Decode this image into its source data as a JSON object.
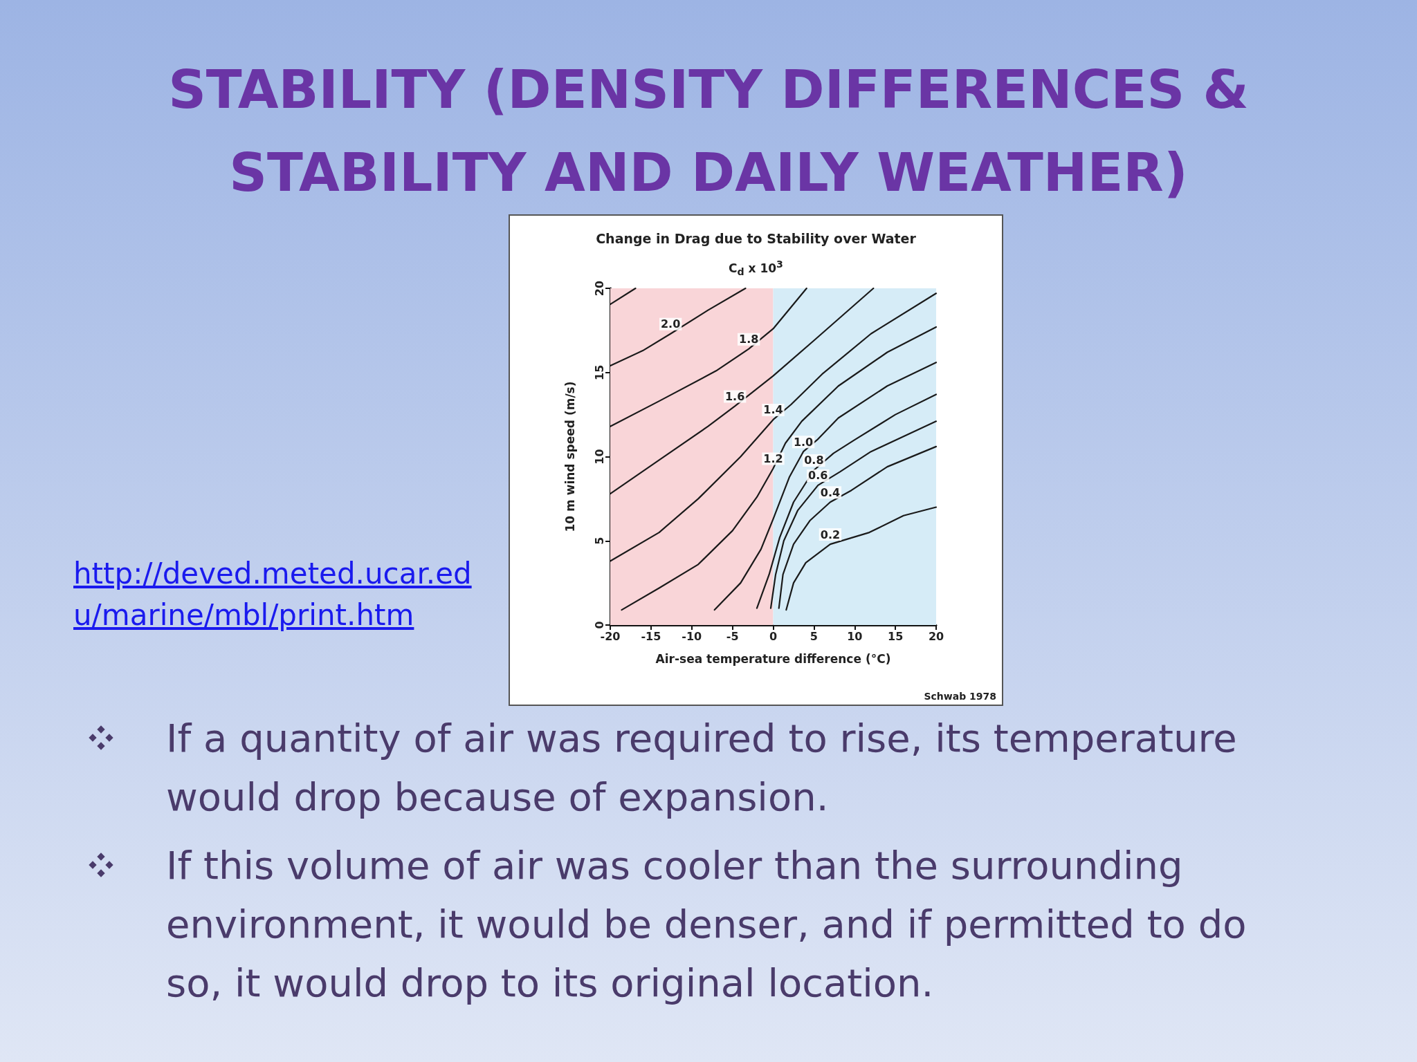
{
  "chart_data": {
    "type": "line",
    "title": "STABILITY (DENSITY DIFFERENCES & STABILITY AND DAILY WEATHER)",
    "subtitle": "Change in Drag due to Stability over Water",
    "xlabel": "Air-sea temperature difference (°C)",
    "ylabel": "10 m wind speed (m/s)",
    "annotations": [
      "C$_{d}$ x 10$^{3}$",
      "Schwab 1978",
      "http://deved.meted.ucar.edu/marine/mbl/print.htm",
      "If a quantity of air was required to rise, its temperature would drop because of expansion.",
      "If this volume of air was cooler than the surrounding environment, it would be denser, and if permitted to do so, it would drop to its original location."
    ],
    "xlim": [
      -20,
      20
    ],
    "ylim": [
      0,
      20
    ],
    "xticks": [
      -20,
      -15,
      -10,
      -5,
      0,
      5,
      10,
      15,
      20
    ],
    "yticks": [
      0,
      5,
      10,
      15,
      20
    ],
    "grid": false,
    "legend": false,
    "marker": "none",
    "line_style": "solid",
    "bands": [
      {
        "axis": "x",
        "from": -20,
        "to": 0,
        "color": "#f9d5d8"
      },
      {
        "axis": "x",
        "from": 0,
        "to": 20,
        "color": "#d6ecf7"
      }
    ],
    "series": [
      {
        "color": "#1a1a1a",
        "x": [
          -20,
          -16.9
        ],
        "values": [
          19.05,
          20
        ]
      },
      {
        "name": "2.0",
        "color": "#1a1a1a",
        "x": [
          -20,
          -16,
          -12.6,
          -8,
          -3.4
        ],
        "values": [
          15.4,
          16.3,
          17.3,
          18.7,
          20
        ]
      },
      {
        "name": "1.8",
        "color": "#1a1a1a",
        "x": [
          -20,
          -14,
          -7,
          -3,
          0,
          4.1
        ],
        "values": [
          11.8,
          13.3,
          15.1,
          16.4,
          17.6,
          20
        ]
      },
      {
        "name": "1.6",
        "color": "#1a1a1a",
        "x": [
          -20,
          -14,
          -8,
          -4.7,
          0,
          5,
          12.3
        ],
        "values": [
          7.8,
          9.8,
          11.8,
          13,
          14.8,
          16.9,
          20
        ]
      },
      {
        "name": "1.4",
        "color": "#1a1a1a",
        "x": [
          -20,
          -14,
          -9.2,
          -4,
          0,
          2.2,
          6,
          12,
          20
        ],
        "values": [
          3.8,
          5.5,
          7.5,
          10,
          12.2,
          13.1,
          14.9,
          17.3,
          19.7
        ]
      },
      {
        "name": "1.2",
        "color": "#1a1a1a",
        "x": [
          -18.6,
          -14,
          -9.2,
          -5,
          -2,
          0,
          1.5,
          3.5,
          8,
          14,
          20
        ],
        "values": [
          0.9,
          2.2,
          3.6,
          5.6,
          7.6,
          9.3,
          10.8,
          12.1,
          14.2,
          16.2,
          17.7
        ]
      },
      {
        "name": "1.0",
        "color": "#1a1a1a",
        "x": [
          -7.2,
          -4,
          -1.5,
          0,
          2,
          3.7,
          5.4,
          8,
          14,
          20
        ],
        "values": [
          0.9,
          2.5,
          4.5,
          6.3,
          8.8,
          10.3,
          11,
          12.3,
          14.2,
          15.6
        ]
      },
      {
        "name": "0.8",
        "color": "#1a1a1a",
        "x": [
          -2,
          -0.5,
          0.8,
          2.5,
          5,
          7.4,
          10,
          15,
          20
        ],
        "values": [
          1,
          3,
          5.2,
          7.3,
          9.2,
          10.2,
          11,
          12.5,
          13.7
        ]
      },
      {
        "name": "0.6",
        "color": "#1a1a1a",
        "x": [
          -0.3,
          0.3,
          1.3,
          3,
          5.5,
          8.2,
          12,
          20
        ],
        "values": [
          1,
          3,
          5,
          6.8,
          8.3,
          9.1,
          10.3,
          12.1
        ]
      },
      {
        "name": "0.4",
        "color": "#1a1a1a",
        "x": [
          0.7,
          1.2,
          2.5,
          4.5,
          7,
          9.6,
          14,
          20
        ],
        "values": [
          1,
          3,
          4.8,
          6.2,
          7.3,
          8,
          9.4,
          10.6
        ]
      },
      {
        "name": "0.2",
        "color": "#1a1a1a",
        "x": [
          1.6,
          2.5,
          4,
          7,
          11.8,
          16,
          20
        ],
        "values": [
          0.9,
          2.5,
          3.7,
          4.8,
          5.5,
          6.5,
          7
        ]
      }
    ]
  }
}
